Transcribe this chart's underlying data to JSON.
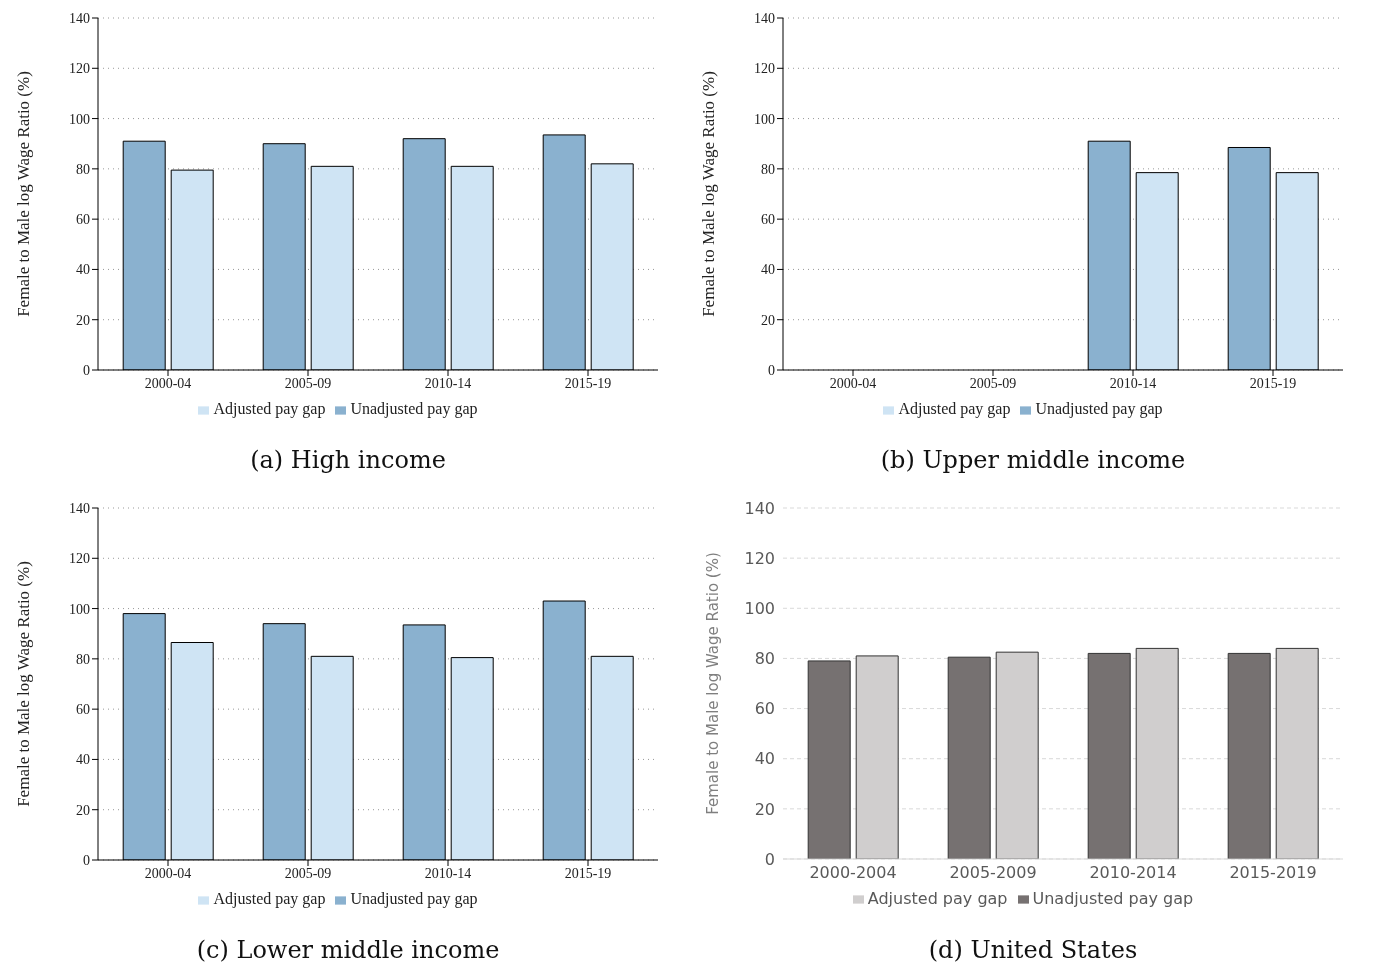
{
  "chart_data": [
    {
      "type": "bar",
      "title": "(a) High income",
      "ylabel": "Female to Male log Wage Ratio (%)",
      "categories": [
        "2000-04",
        "2005-09",
        "2010-14",
        "2015-19"
      ],
      "series": [
        {
          "name": "Unadjusted pay gap",
          "color": "#8ab1cf",
          "values": [
            91,
            90,
            92,
            93.5
          ]
        },
        {
          "name": "Adjusted pay gap",
          "color": "#cfe4f4",
          "values": [
            79.5,
            81,
            81,
            82
          ]
        }
      ],
      "ylim": [
        0,
        140
      ],
      "yticks": [
        0,
        20,
        40,
        60,
        80,
        100,
        120,
        140
      ],
      "grid": "y",
      "legend": "bottom"
    },
    {
      "type": "bar",
      "title": "(b) Upper middle income",
      "ylabel": "Female to Male log Wage Ratio (%)",
      "categories": [
        "2000-04",
        "2005-09",
        "2010-14",
        "2015-19"
      ],
      "series": [
        {
          "name": "Unadjusted pay gap",
          "color": "#8ab1cf",
          "values": [
            null,
            null,
            91,
            88.5
          ]
        },
        {
          "name": "Adjusted pay gap",
          "color": "#cfe4f4",
          "values": [
            null,
            null,
            78.5,
            78.5
          ]
        }
      ],
      "ylim": [
        0,
        140
      ],
      "yticks": [
        0,
        20,
        40,
        60,
        80,
        100,
        120,
        140
      ],
      "grid": "y",
      "legend": "bottom"
    },
    {
      "type": "bar",
      "title": "(c) Lower middle income",
      "ylabel": "Female to Male log Wage Ratio (%)",
      "categories": [
        "2000-04",
        "2005-09",
        "2010-14",
        "2015-19"
      ],
      "series": [
        {
          "name": "Unadjusted pay gap",
          "color": "#8ab1cf",
          "values": [
            98,
            94,
            93.5,
            103
          ]
        },
        {
          "name": "Adjusted pay gap",
          "color": "#cfe4f4",
          "values": [
            86.5,
            81,
            80.5,
            81
          ]
        }
      ],
      "ylim": [
        0,
        140
      ],
      "yticks": [
        0,
        20,
        40,
        60,
        80,
        100,
        120,
        140
      ],
      "grid": "y",
      "legend": "bottom"
    },
    {
      "type": "bar",
      "title": "(d) United States",
      "ylabel": "Female to Male log Wage Ratio (%)",
      "categories": [
        "2000-2004",
        "2005-2009",
        "2010-2014",
        "2015-2019"
      ],
      "series": [
        {
          "name": "Unadjusted pay gap",
          "color": "#767171",
          "values": [
            79,
            80.5,
            82,
            82
          ]
        },
        {
          "name": "Adjusted pay gap",
          "color": "#d0cece",
          "values": [
            81,
            82.5,
            84,
            84
          ]
        }
      ],
      "ylim": [
        0,
        140
      ],
      "yticks": [
        0,
        20,
        40,
        60,
        80,
        100,
        120,
        140
      ],
      "grid": "y",
      "legend": "bottom"
    }
  ]
}
